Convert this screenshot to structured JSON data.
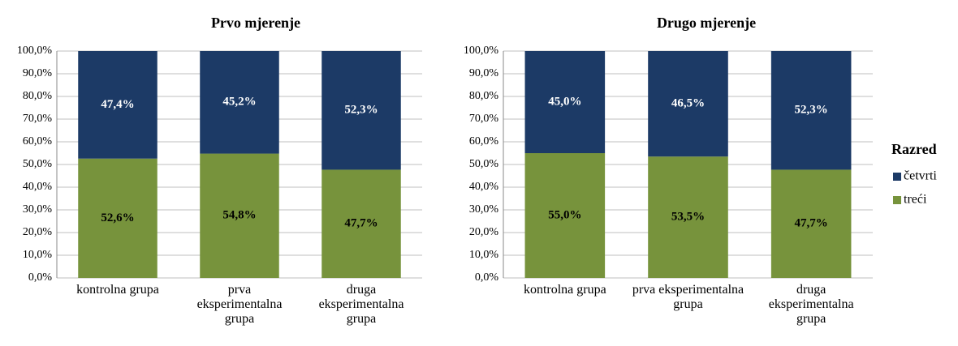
{
  "chart_data": [
    {
      "type": "bar",
      "stacked": true,
      "title": "Prvo mjerenje",
      "categories": [
        "kontrolna grupa",
        "prva eksperimentalna grupa",
        "druga eksperimentalna grupa"
      ],
      "series": [
        {
          "color": "#77933c",
          "values": [
            52.6,
            54.8,
            47.7
          ],
          "value_labels": [
            "52,6%",
            "54,8%",
            "47,7%"
          ]
        },
        {
          "color": "#1c3a66",
          "values": [
            47.4,
            45.2,
            52.3
          ],
          "value_labels": [
            "47,4%",
            "45,2%",
            "52,3%"
          ]
        }
      ],
      "ylim": [
        0,
        100
      ],
      "yticks": [
        {
          "value": 0,
          "label": "0,0%"
        },
        {
          "value": 10,
          "label": "10,0%"
        },
        {
          "value": 20,
          "label": "20,0%"
        },
        {
          "value": 30,
          "label": "30,0%"
        },
        {
          "value": 40,
          "label": "40,0%"
        },
        {
          "value": 50,
          "label": "50,0%"
        },
        {
          "value": 60,
          "label": "60,0%"
        },
        {
          "value": 70,
          "label": "70,0%"
        },
        {
          "value": 80,
          "label": "80,0%"
        },
        {
          "value": 90,
          "label": "90,0%"
        },
        {
          "value": 100,
          "label": "100,0%"
        }
      ],
      "grid": true
    },
    {
      "type": "bar",
      "stacked": true,
      "title": "Drugo mjerenje",
      "categories": [
        "kontrolna grupa",
        "prva eksperimentalna grupa",
        "druga eksperimentalna grupa"
      ],
      "series": [
        {
          "name": "treći",
          "color": "#77933c",
          "values": [
            55.0,
            53.5,
            47.7
          ],
          "value_labels": [
            "55,0%",
            "53,5%",
            "47,7%"
          ]
        },
        {
          "name": "četvrti",
          "color": "#1c3a66",
          "values": [
            45.0,
            46.5,
            52.3
          ],
          "value_labels": [
            "45,0%",
            "46,5%",
            "52,3%"
          ]
        }
      ],
      "ylim": [
        0,
        100
      ],
      "yticks": [
        {
          "value": 0,
          "label": "0,0%"
        },
        {
          "value": 10,
          "label": "10,0%"
        },
        {
          "value": 20,
          "label": "20,0%"
        },
        {
          "value": 30,
          "label": "30,0%"
        },
        {
          "value": 40,
          "label": "40,0%"
        },
        {
          "value": 50,
          "label": "50,0%"
        },
        {
          "value": 60,
          "label": "60,0%"
        },
        {
          "value": 70,
          "label": "70,0%"
        },
        {
          "value": 80,
          "label": "80,0%"
        },
        {
          "value": 90,
          "label": "90,0%"
        },
        {
          "value": 100,
          "label": "100,0%"
        }
      ],
      "grid": true,
      "legend_title": "Razred",
      "legend": "right"
    }
  ]
}
